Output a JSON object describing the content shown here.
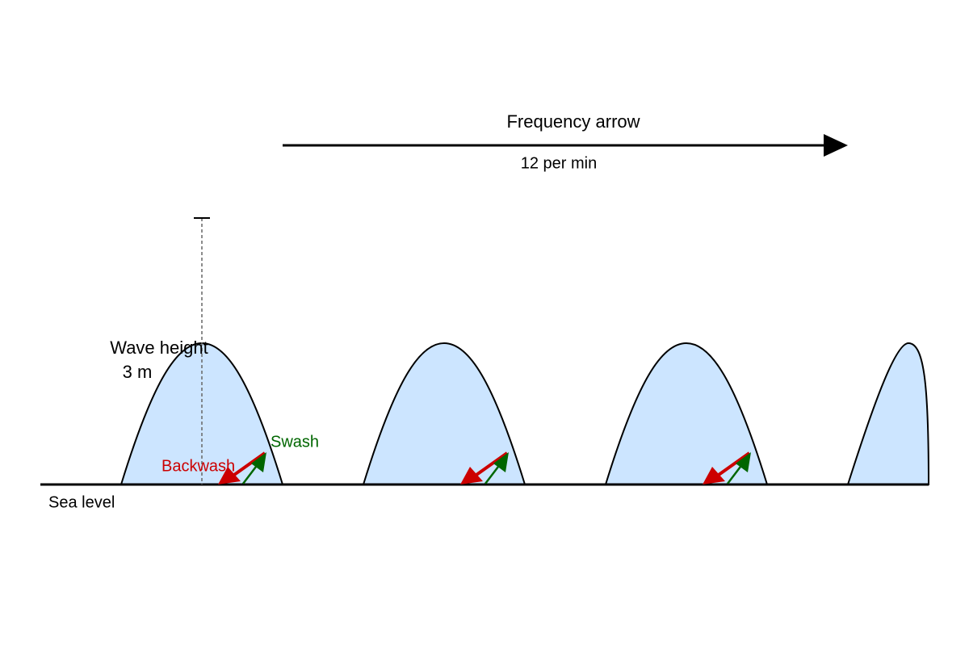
{
  "labels": {
    "frequency": "Frequency arrow",
    "frequency_value": "12 per min",
    "wave_height": "Wave height",
    "wave_height_value": "3 m",
    "swash": "Swash",
    "backwash": "Backwash",
    "sea_level": "Sea level"
  }
}
